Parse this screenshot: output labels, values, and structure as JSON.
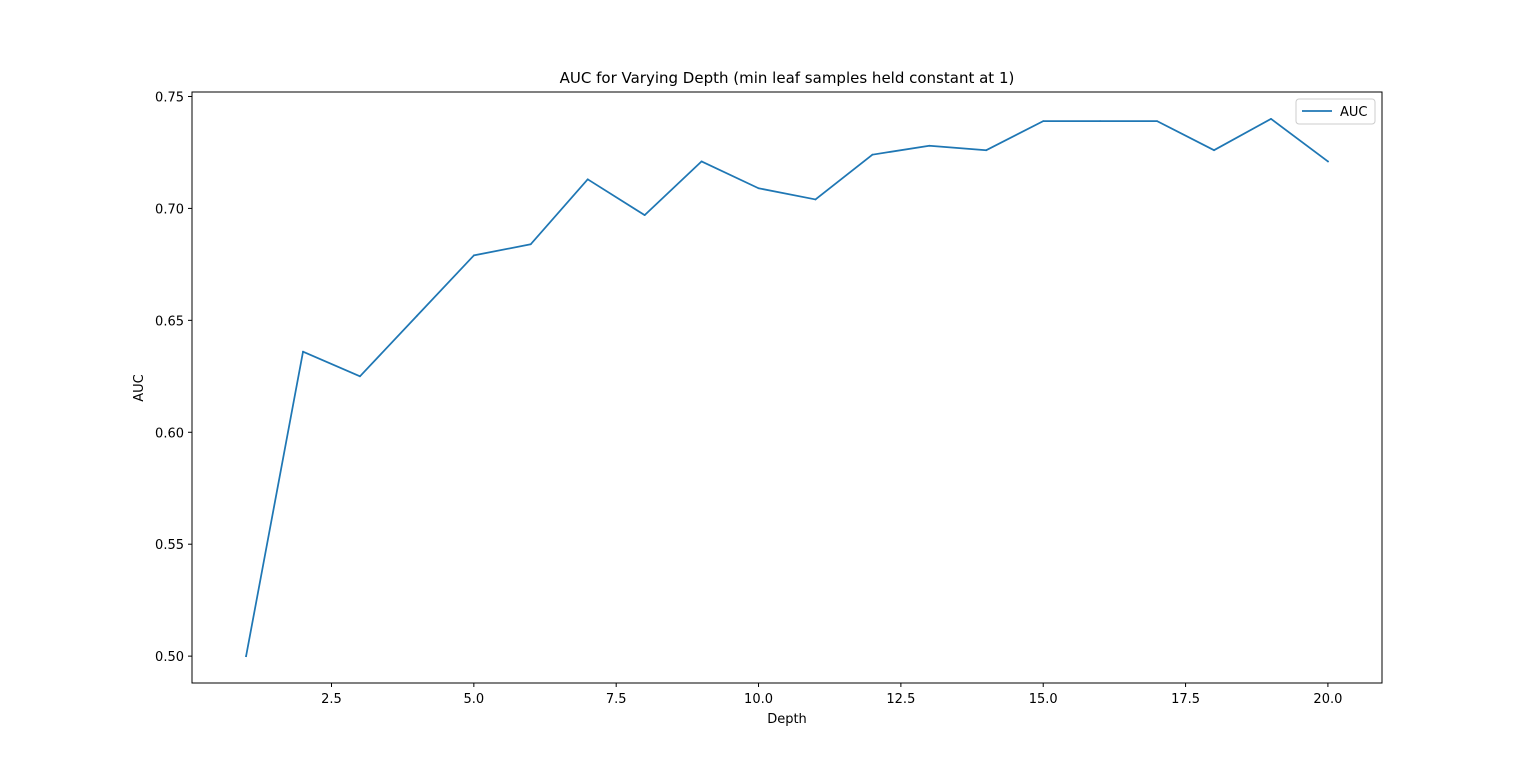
{
  "chart_data": {
    "type": "line",
    "title": "AUC for Varying Depth (min leaf samples held constant at 1)",
    "xlabel": "Depth",
    "ylabel": "AUC",
    "xlim": [
      0.05,
      20.95
    ],
    "ylim": [
      0.488,
      0.752
    ],
    "xticks": [
      2.5,
      5.0,
      7.5,
      10.0,
      12.5,
      15.0,
      17.5,
      20.0
    ],
    "xtick_labels": [
      "2.5",
      "5.0",
      "7.5",
      "10.0",
      "12.5",
      "15.0",
      "17.5",
      "20.0"
    ],
    "yticks": [
      0.5,
      0.55,
      0.6,
      0.65,
      0.7,
      0.75
    ],
    "ytick_labels": [
      "0.50",
      "0.55",
      "0.60",
      "0.65",
      "0.70",
      "0.75"
    ],
    "grid": false,
    "legend_position": "top-right",
    "x": [
      1,
      2,
      3,
      4,
      5,
      6,
      7,
      8,
      9,
      10,
      11,
      12,
      13,
      14,
      15,
      16,
      17,
      18,
      19,
      20
    ],
    "series": [
      {
        "name": "AUC",
        "color": "#1f77b4",
        "values": [
          0.5,
          0.636,
          0.625,
          0.652,
          0.679,
          0.684,
          0.713,
          0.697,
          0.721,
          0.709,
          0.704,
          0.724,
          0.728,
          0.726,
          0.739,
          0.739,
          0.739,
          0.726,
          0.74,
          0.721
        ]
      }
    ]
  }
}
